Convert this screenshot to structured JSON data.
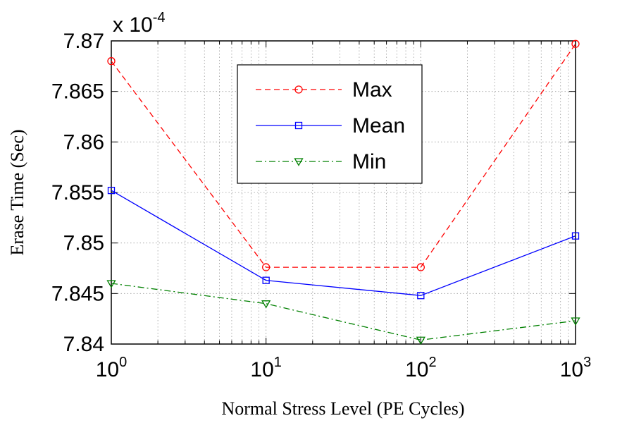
{
  "chart_data": {
    "type": "line",
    "x_scale": "log",
    "x": [
      1,
      10,
      100,
      1000
    ],
    "x_ticks": [
      {
        "base": "10",
        "exp": "0"
      },
      {
        "base": "10",
        "exp": "1"
      },
      {
        "base": "10",
        "exp": "2"
      },
      {
        "base": "10",
        "exp": "3"
      }
    ],
    "xlim": [
      1,
      1000
    ],
    "y_ticks": [
      "7.84",
      "7.845",
      "7.85",
      "7.855",
      "7.86",
      "7.865",
      "7.87"
    ],
    "ylim": [
      7.84,
      7.87
    ],
    "y_multiplier": {
      "base": "x 10",
      "exp": "-4"
    },
    "xlabel": "Normal Stress Level (PE Cycles)",
    "ylabel": "Erase Time (Sec)",
    "grid": true,
    "legend_position": "top-center",
    "series": [
      {
        "name": "Max",
        "values": [
          7.868,
          7.8476,
          7.8476,
          7.8697
        ],
        "color": "#ff0000",
        "line_style": "dashed",
        "marker": "circle"
      },
      {
        "name": "Mean",
        "values": [
          7.8552,
          7.8463,
          7.8448,
          7.8507
        ],
        "color": "#0000ff",
        "line_style": "solid",
        "marker": "square"
      },
      {
        "name": "Min",
        "values": [
          7.846,
          7.844,
          7.8404,
          7.8423
        ],
        "color": "#008000",
        "line_style": "dashdot",
        "marker": "triangle-down"
      }
    ]
  }
}
